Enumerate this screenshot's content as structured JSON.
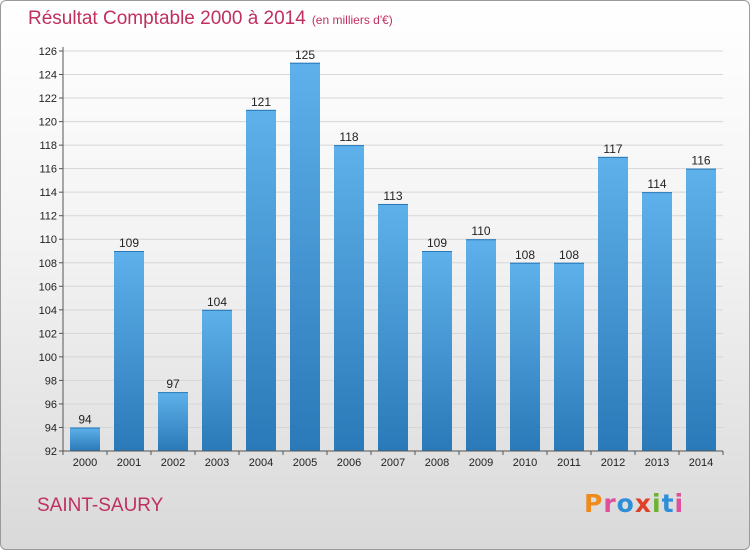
{
  "header": {
    "title": "Résultat Comptable 2000 à 2014",
    "subtitle": "(en milliers d'€)"
  },
  "footer": {
    "commune": "SAINT-SAURY",
    "logo_text": "Proxiti"
  },
  "colors": {
    "title": "#c0305e",
    "bar_top": "#5eb1ea",
    "bar_bottom": "#2a79b8",
    "logo_letters": [
      "#ef8a1c",
      "#e04f9a",
      "#2e8fd8",
      "#e0402a",
      "#6bb52e",
      "#2e8fd8",
      "#e04f9a"
    ]
  },
  "chart_data": {
    "type": "bar",
    "title": "Résultat Comptable 2000 à 2014",
    "subtitle": "(en milliers d'€)",
    "categories": [
      "2000",
      "2001",
      "2002",
      "2003",
      "2004",
      "2005",
      "2006",
      "2007",
      "2008",
      "2009",
      "2010",
      "2011",
      "2012",
      "2013",
      "2014"
    ],
    "values": [
      94,
      109,
      97,
      104,
      121,
      125,
      118,
      113,
      109,
      110,
      108,
      108,
      117,
      114,
      116
    ],
    "ylim": [
      92,
      126
    ],
    "yticks": [
      92,
      94,
      96,
      98,
      100,
      102,
      104,
      106,
      108,
      110,
      112,
      114,
      116,
      118,
      120,
      122,
      124,
      126
    ],
    "grid": true,
    "data_labels": true
  }
}
